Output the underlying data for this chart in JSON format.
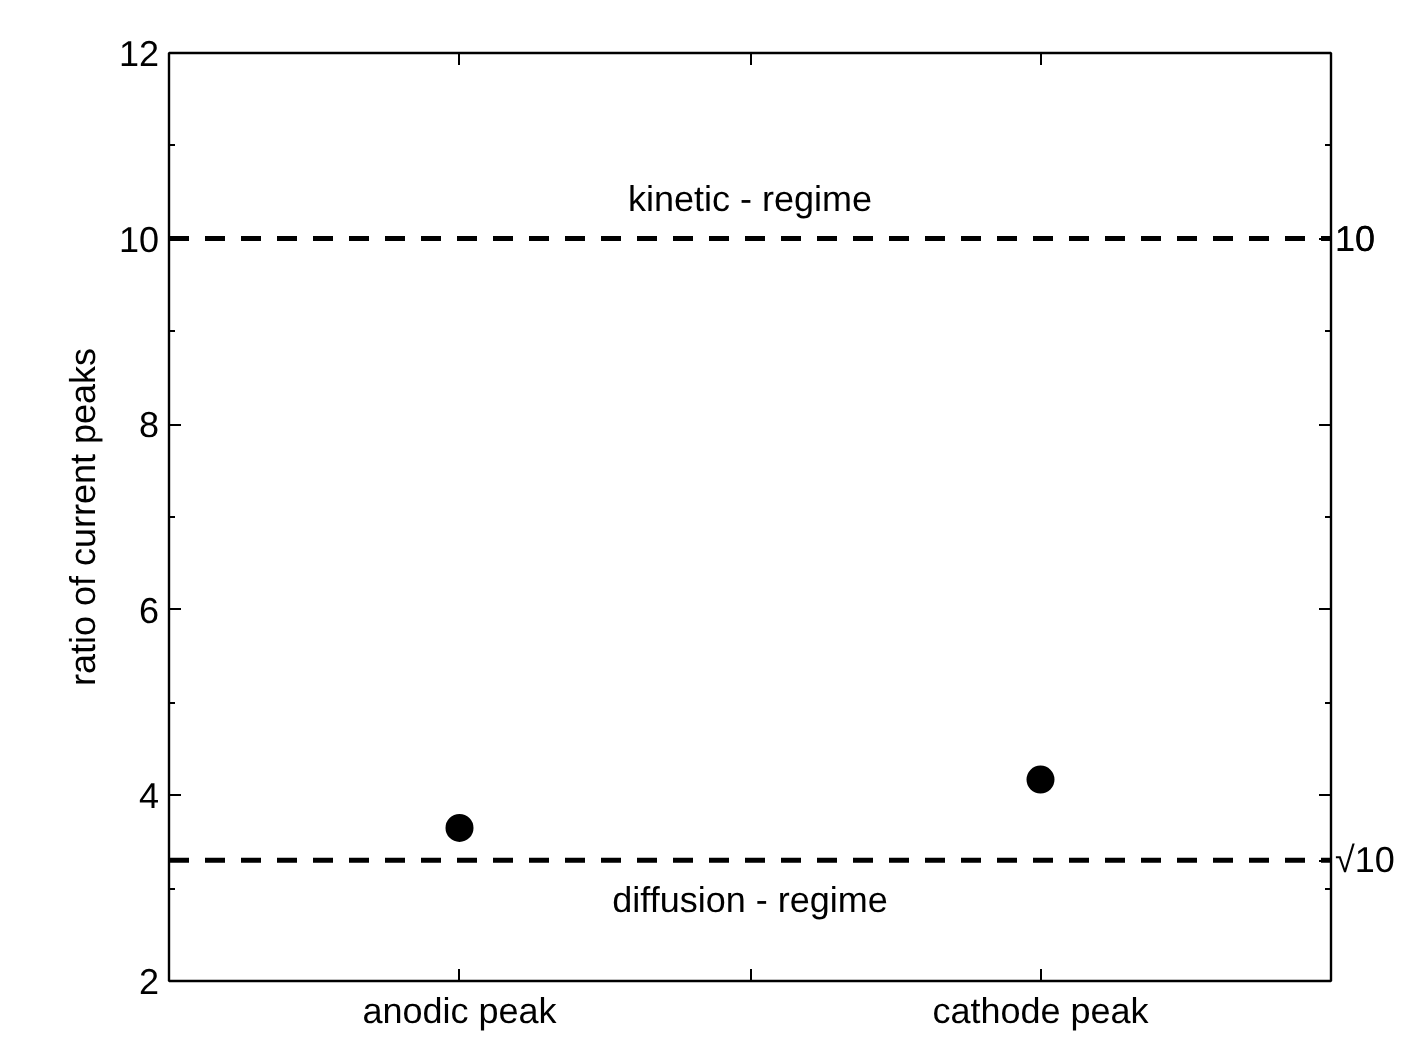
{
  "chart_data": {
    "type": "scatter",
    "ylabel": "ratio of current peaks",
    "categories": [
      "anodic peak",
      "cathode peak"
    ],
    "series": [
      {
        "color": "#000000",
        "values": [
          3.65,
          4.17
        ]
      }
    ],
    "marker": "circle",
    "ylim": [
      2,
      12
    ],
    "yticks": [
      2,
      4,
      6,
      8,
      10,
      12
    ],
    "grid": false,
    "ref_lines": [
      {
        "axis": "y",
        "value": 10,
        "label": "10",
        "line_style": "dashed",
        "color": "#000000"
      },
      {
        "axis": "y",
        "value": 3.3,
        "label": "√10",
        "line_style": "dashed",
        "color": "#000000"
      }
    ],
    "annotations": [
      "kinetic - regime",
      "diffusion - regime"
    ]
  }
}
